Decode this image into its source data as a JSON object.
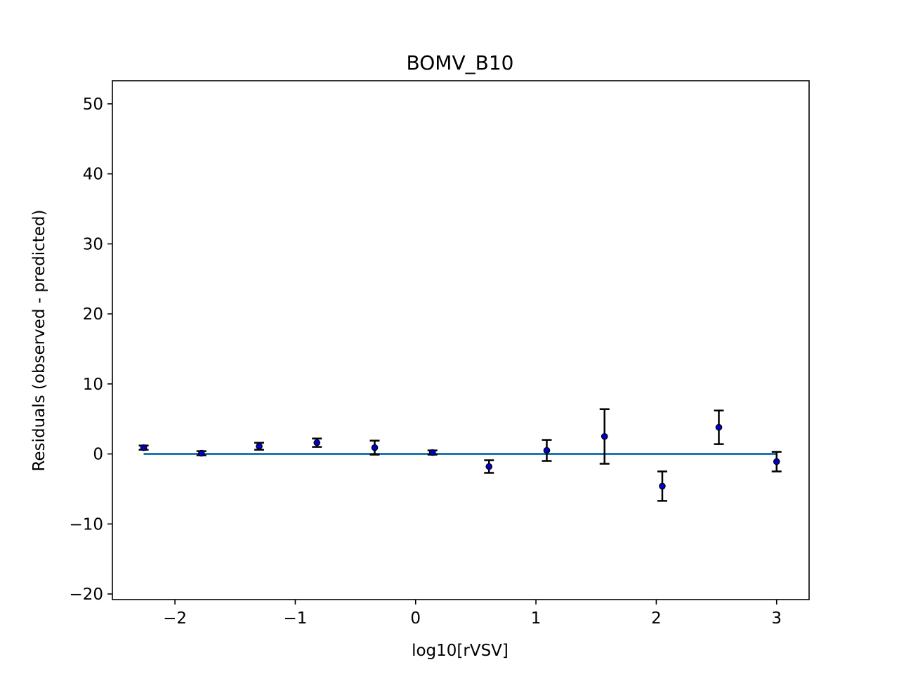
{
  "chart_data": {
    "type": "scatter",
    "title": "BOMV_B10",
    "xlabel": "log10[rVSV]",
    "ylabel": "Residuals (observed - predicted)",
    "xlim": [
      -2.52,
      3.27
    ],
    "ylim": [
      -20.8,
      53.3
    ],
    "x_ticks": [
      -2,
      -1,
      0,
      1,
      2,
      3
    ],
    "x_tick_labels": [
      "−2",
      "−1",
      "0",
      "1",
      "2",
      "3"
    ],
    "y_ticks": [
      -20,
      -10,
      0,
      10,
      20,
      30,
      40,
      50
    ],
    "y_tick_labels": [
      "−20",
      "−10",
      "0",
      "10",
      "20",
      "30",
      "40",
      "50"
    ],
    "grid": false,
    "reference_line": {
      "y": 0,
      "x_range": [
        -2.26,
        3.0
      ],
      "color": "#1f77b4"
    },
    "points": [
      {
        "x": -2.26,
        "y": 0.9,
        "err": 0.3
      },
      {
        "x": -1.78,
        "y": 0.1,
        "err": 0.3
      },
      {
        "x": -1.3,
        "y": 1.1,
        "err": 0.5
      },
      {
        "x": -0.82,
        "y": 1.6,
        "err": 0.6
      },
      {
        "x": -0.34,
        "y": 0.9,
        "err": 1.0
      },
      {
        "x": 0.14,
        "y": 0.2,
        "err": 0.3
      },
      {
        "x": 0.61,
        "y": -1.8,
        "err": 0.9
      },
      {
        "x": 1.09,
        "y": 0.5,
        "err": 1.5
      },
      {
        "x": 1.57,
        "y": 2.5,
        "err": 3.9
      },
      {
        "x": 2.05,
        "y": -4.6,
        "err": 2.1
      },
      {
        "x": 2.52,
        "y": 3.8,
        "err": 2.4
      },
      {
        "x": 3.0,
        "y": -1.1,
        "err": 1.4
      }
    ],
    "point_color": "#0000cc",
    "error_bar_color": "#000000"
  }
}
